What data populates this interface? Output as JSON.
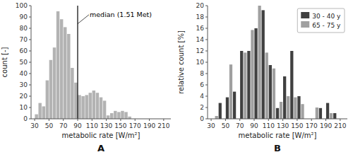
{
  "chart_data": [
    {
      "type": "histogram",
      "title": "A",
      "x_label": "metabolic rate [W/m²]",
      "y_label": "count [-]",
      "bins": [
        30,
        35,
        40,
        45,
        50,
        55,
        60,
        65,
        70,
        75,
        80,
        85,
        90,
        95,
        100,
        105,
        110,
        115,
        120,
        125,
        130,
        135,
        140,
        145,
        150,
        155,
        160,
        165
      ],
      "values": [
        4,
        14,
        11,
        34,
        52,
        63,
        95,
        88,
        81,
        75,
        45,
        32,
        21,
        20,
        21,
        23,
        25,
        23,
        19,
        16,
        3,
        5,
        7,
        6,
        7,
        6,
        2
      ],
      "color": "#b3b3b3",
      "xlim": [
        25,
        220
      ],
      "ylim": [
        0,
        100
      ],
      "xticks": [
        30,
        50,
        70,
        90,
        110,
        130,
        150,
        170,
        190,
        210
      ],
      "yticks": [
        0,
        10,
        20,
        30,
        40,
        50,
        60,
        70,
        80,
        90,
        100
      ],
      "annotations": [
        {
          "text": "median (1.51 Met)",
          "x": 90
        }
      ]
    },
    {
      "type": "histogram",
      "title": "B",
      "x_label": "metabolic rate [W/m²]",
      "y_label": "relative count [%]",
      "bins": [
        30,
        40,
        50,
        60,
        70,
        80,
        90,
        100,
        110,
        120,
        130,
        140,
        150,
        160,
        170,
        180,
        190,
        200,
        210,
        220
      ],
      "series": [
        {
          "name": "30 - 40 y",
          "color": "#404040",
          "values": [
            0.0,
            2.8,
            3.8,
            4.8,
            12.0,
            12.0,
            16.0,
            19.2,
            9.5,
            1.9,
            7.5,
            12.0,
            4.0,
            0.0,
            0.0,
            1.9,
            2.8,
            1.0,
            0.0
          ]
        },
        {
          "name": "65 - 75 y",
          "color": "#a0a0a0",
          "values": [
            0.5,
            0.0,
            9.6,
            0.0,
            11.7,
            15.7,
            20.0,
            11.7,
            8.9,
            3.0,
            4.0,
            3.8,
            2.6,
            0.0,
            2.0,
            0.0,
            1.0,
            0.0,
            0.0
          ]
        }
      ],
      "legend": "upper right",
      "xlim": [
        25,
        220
      ],
      "ylim": [
        0,
        20
      ],
      "xticks": [
        30,
        50,
        70,
        90,
        110,
        130,
        150,
        170,
        190,
        210
      ],
      "yticks": [
        0,
        2,
        4,
        6,
        8,
        10,
        12,
        14,
        16,
        18,
        20
      ]
    }
  ]
}
